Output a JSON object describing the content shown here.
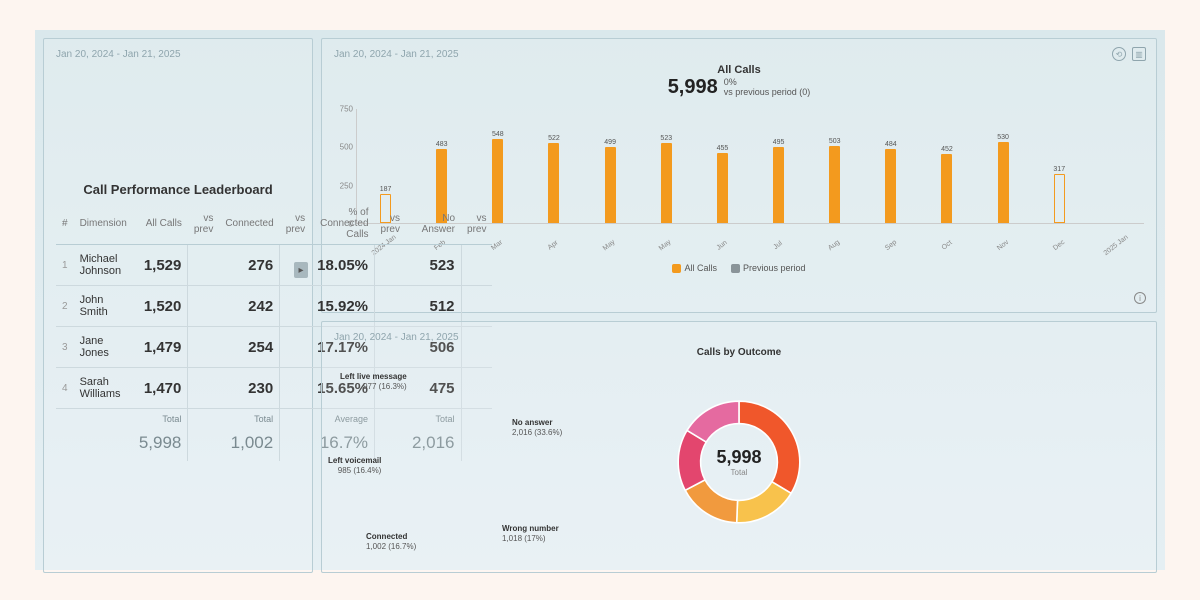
{
  "date_range": "Jan 20, 2024 - Jan 21, 2025",
  "colors": {
    "bar_fill": "#f39a1e",
    "bar_outline": "#f39a1e",
    "prev_fill": "#ffffff",
    "grid": "#cccccc",
    "text": "#333333",
    "muted": "#8fa5ad"
  },
  "bar_chart": {
    "title": "All Calls",
    "value": "5,998",
    "delta_pct": "0%",
    "delta_sub": "vs previous period (0)",
    "ymax": 750,
    "yticks": [
      750,
      500,
      250,
      0
    ],
    "series_color": "#f39a1e",
    "prev_bar_border": "#f39a1e",
    "bars": [
      {
        "label": "2024 Jan",
        "value": 187,
        "outline": true
      },
      {
        "label": "Feb",
        "value": 483
      },
      {
        "label": "Mar",
        "value": 548
      },
      {
        "label": "Apr",
        "value": 522
      },
      {
        "label": "May",
        "value": 499
      },
      {
        "label": "May",
        "value": 523
      },
      {
        "label": "Jun",
        "value": 455
      },
      {
        "label": "Jul",
        "value": 495
      },
      {
        "label": "Aug",
        "value": 503
      },
      {
        "label": "Sep",
        "value": 484
      },
      {
        "label": "Oct",
        "value": 452
      },
      {
        "label": "Nov",
        "value": 530
      },
      {
        "label": "Dec",
        "value": 317,
        "outline": true
      },
      {
        "label": "2025 Jan",
        "value": null
      }
    ],
    "legend": [
      {
        "label": "All Calls",
        "color": "#f39a1e",
        "checked": true
      },
      {
        "label": "Previous period",
        "color": "#8a9499",
        "checked": true
      }
    ]
  },
  "donut": {
    "title": "Calls by Outcome",
    "total_value": "5,998",
    "total_label": "Total",
    "slices": [
      {
        "name": "No answer",
        "value": 2016,
        "pct": 33.6,
        "color": "#f0572b"
      },
      {
        "name": "Wrong number",
        "value": 1018,
        "pct": 17.0,
        "color": "#f8c24c"
      },
      {
        "name": "Connected",
        "value": 1002,
        "pct": 16.7,
        "color": "#f19a3e"
      },
      {
        "name": "Left voicemail",
        "value": 985,
        "pct": 16.4,
        "color": "#e3466e"
      },
      {
        "name": "Left live message",
        "value": 977,
        "pct": 16.3,
        "color": "#e56aa0"
      }
    ]
  },
  "leaderboard": {
    "title": "Call Performance Leaderboard",
    "columns": [
      "#",
      "Dimension",
      "All Calls",
      "vs prev",
      "Connected",
      "vs prev",
      "% of Connected Calls",
      "vs prev",
      "No Answer",
      "vs prev"
    ],
    "rows": [
      {
        "idx": 1,
        "dim": "Michael Johnson",
        "all": "1,529",
        "conn": "276",
        "pct": "18.05%",
        "na": "523"
      },
      {
        "idx": 2,
        "dim": "John Smith",
        "all": "1,520",
        "conn": "242",
        "pct": "15.92%",
        "na": "512"
      },
      {
        "idx": 3,
        "dim": "Jane Jones",
        "all": "1,479",
        "conn": "254",
        "pct": "17.17%",
        "na": "506"
      },
      {
        "idx": 4,
        "dim": "Sarah Williams",
        "all": "1,470",
        "conn": "230",
        "pct": "15.65%",
        "na": "475"
      }
    ],
    "footer": {
      "all": {
        "label": "Total",
        "value": "5,998"
      },
      "conn": {
        "label": "Total",
        "value": "1,002"
      },
      "pct": {
        "label": "Average",
        "value": "16.7%"
      },
      "na": {
        "label": "Total",
        "value": "2,016"
      }
    }
  }
}
